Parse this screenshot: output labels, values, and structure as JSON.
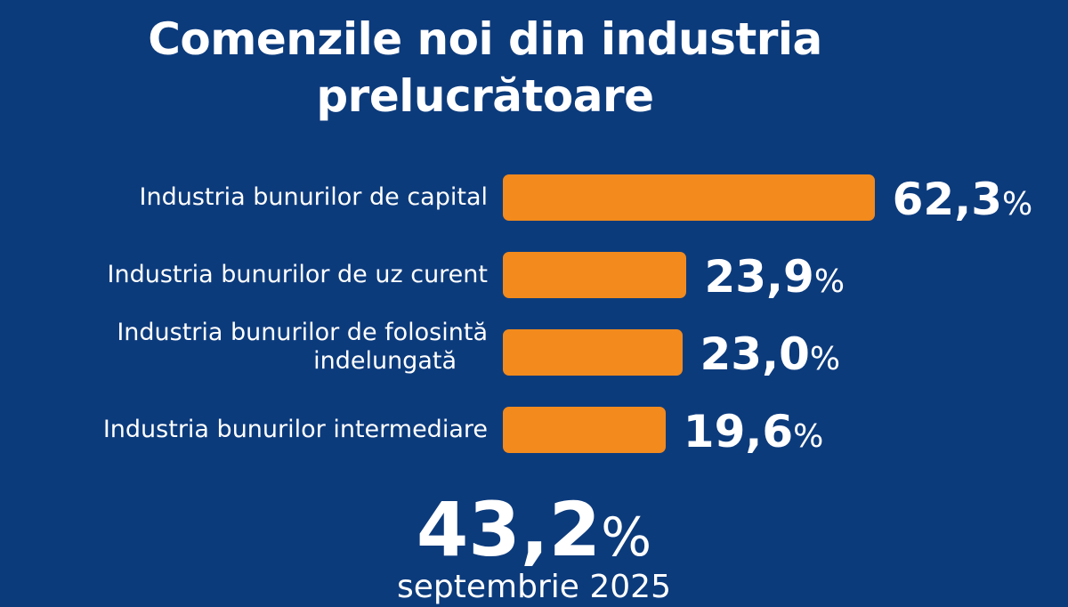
{
  "chart_data": {
    "type": "bar",
    "orientation": "horizontal",
    "title": "Comenzile noi din industria prelucrătoare",
    "categories": [
      "Industria bunurilor de capital",
      "Industria bunurilor de uz curent",
      "Industria bunurilor de folosintă indelungată",
      "Industria bunurilor intermediare"
    ],
    "label_lines": [
      [
        "Industria bunurilor de capital"
      ],
      [
        "Industria bunurilor de uz curent"
      ],
      [
        "Industria bunurilor de folosintă",
        "indelungată"
      ],
      [
        "Industria bunurilor intermediare"
      ]
    ],
    "values": [
      62.3,
      23.9,
      23.0,
      19.6
    ],
    "value_labels": [
      "62,3",
      "23,9",
      "23,0",
      "19,6"
    ],
    "unit": "%",
    "bar_color": "#f28a1d",
    "background_color": "#0c3b7c",
    "xlabel": "",
    "ylabel": ""
  },
  "title_lines": [
    "Comenzile noi din industria",
    "prelucrătoare"
  ],
  "total": {
    "value": "43,2",
    "unit": "%",
    "period": "septembrie 2025"
  }
}
